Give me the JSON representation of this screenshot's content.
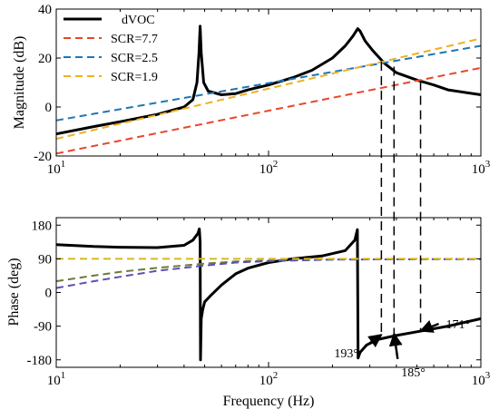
{
  "chart_data": {
    "type": "line",
    "x_scale": "log",
    "x_range": [
      10,
      1000
    ],
    "xlabel": "Frequency (Hz)",
    "x_tick_labels": [
      {
        "base": "10",
        "exp": "1"
      },
      {
        "base": "10",
        "exp": "2"
      },
      {
        "base": "10",
        "exp": "3"
      }
    ],
    "magnitude": {
      "ylabel": "Magnitude (dB)",
      "ylim": [
        -20,
        40
      ],
      "yticks": [
        -20,
        0,
        20,
        40
      ],
      "legend": {
        "placement": "top-left",
        "entries": [
          "dVOC",
          "SCR=7.7",
          "SCR=2.5",
          "SCR=1.9"
        ]
      },
      "series": [
        {
          "name": "dVOC",
          "color": "#000000",
          "style": "solid",
          "points": [
            [
              10,
              -11
            ],
            [
              15,
              -8
            ],
            [
              20,
              -6
            ],
            [
              30,
              -3
            ],
            [
              40,
              0
            ],
            [
              44,
              3
            ],
            [
              46,
              10
            ],
            [
              47,
              22
            ],
            [
              47.6,
              33
            ],
            [
              48.2,
              22
            ],
            [
              49.5,
              10
            ],
            [
              52,
              6.5
            ],
            [
              60,
              5
            ],
            [
              70,
              5.5
            ],
            [
              80,
              7
            ],
            [
              100,
              9
            ],
            [
              130,
              12
            ],
            [
              160,
              15
            ],
            [
              200,
              20
            ],
            [
              230,
              25
            ],
            [
              250,
              29
            ],
            [
              263,
              32
            ],
            [
              270,
              31
            ],
            [
              285,
              27
            ],
            [
              310,
              23
            ],
            [
              350,
              18
            ],
            [
              400,
              14
            ],
            [
              500,
              11
            ],
            [
              600,
              9
            ],
            [
              700,
              7
            ],
            [
              1000,
              5
            ]
          ]
        },
        {
          "name": "SCR=7.7",
          "color": "#e8462a",
          "style": "dashed",
          "points": [
            [
              10,
              -19
            ],
            [
              1000,
              16
            ]
          ]
        },
        {
          "name": "SCR=2.5",
          "color": "#1f77b4",
          "style": "dashed",
          "points": [
            [
              10,
              -5.5
            ],
            [
              1000,
              25
            ]
          ]
        },
        {
          "name": "SCR=1.9",
          "color": "#f0b020",
          "style": "dashed",
          "points": [
            [
              10,
              -13
            ],
            [
              1000,
              28
            ]
          ]
        }
      ]
    },
    "phase": {
      "ylabel": "Phase (deg)",
      "ylim": [
        -200,
        200
      ],
      "yticks": [
        -180,
        -90,
        0,
        90,
        180
      ],
      "series": [
        {
          "name": "dVOC",
          "color": "#000000",
          "style": "solid",
          "points": [
            [
              10,
              128
            ],
            [
              15,
              123
            ],
            [
              20,
              121
            ],
            [
              30,
              120
            ],
            [
              40,
              126
            ],
            [
              44,
              140
            ],
            [
              46.5,
              158
            ],
            [
              47.2,
              170
            ],
            [
              47.6,
              135
            ],
            [
              47.8,
              -180
            ],
            [
              48.2,
              -70
            ],
            [
              49,
              -45
            ],
            [
              50,
              -25
            ],
            [
              53,
              -10
            ],
            [
              60,
              20
            ],
            [
              70,
              50
            ],
            [
              80,
              65
            ],
            [
              100,
              80
            ],
            [
              130,
              90
            ],
            [
              180,
              98
            ],
            [
              230,
              112
            ],
            [
              255,
              140
            ],
            [
              262,
              168
            ],
            [
              264,
              -175
            ],
            [
              270,
              -160
            ],
            [
              290,
              -140
            ],
            [
              330,
              -125
            ],
            [
              400,
              -115
            ],
            [
              500,
              -105
            ],
            [
              700,
              -90
            ],
            [
              1000,
              -70
            ]
          ]
        },
        {
          "name": "SCR=7.7",
          "color": "#6b7a3a",
          "style": "dashed",
          "points": [
            [
              10,
              30
            ],
            [
              15,
              45
            ],
            [
              20,
              55
            ],
            [
              30,
              66
            ],
            [
              50,
              77
            ],
            [
              70,
              83
            ],
            [
              100,
              85
            ],
            [
              200,
              88
            ],
            [
              500,
              89
            ],
            [
              1000,
              89
            ]
          ]
        },
        {
          "name": "SCR=2.5",
          "color": "#5b50b8",
          "style": "dashed",
          "points": [
            [
              10,
              12
            ],
            [
              15,
              30
            ],
            [
              20,
              42
            ],
            [
              30,
              58
            ],
            [
              50,
              72
            ],
            [
              70,
              80
            ],
            [
              100,
              84
            ],
            [
              200,
              88
            ],
            [
              500,
              89
            ],
            [
              1000,
              89
            ]
          ]
        },
        {
          "name": "SCR=1.9",
          "color": "#d8b820",
          "style": "dashed",
          "points": [
            [
              10,
              90
            ],
            [
              50,
              90
            ],
            [
              100,
              90
            ],
            [
              500,
              90
            ],
            [
              1000,
              90
            ]
          ]
        }
      ]
    },
    "annotations": [
      {
        "label": "193°",
        "freq": 340,
        "phase": -113
      },
      {
        "label": "185°",
        "freq": 390,
        "phase": -110
      },
      {
        "label": "171°",
        "freq": 520,
        "phase": -103
      }
    ],
    "crossover_freqs": [
      340,
      390,
      520
    ]
  }
}
